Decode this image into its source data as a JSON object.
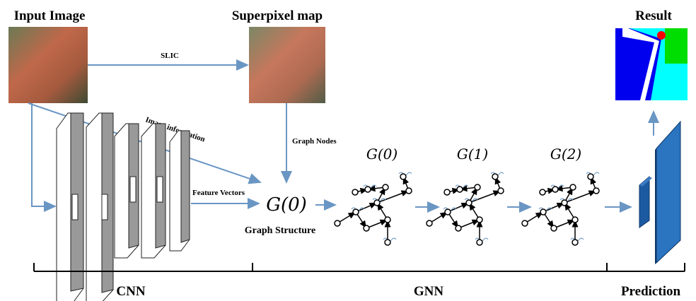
{
  "images": {
    "input": "Input Image",
    "superpixel": "Superpixel map",
    "result": "Result"
  },
  "edges": {
    "slic": "SLIC",
    "image_information": "Image information",
    "graph_nodes": "Graph Nodes",
    "feature_vectors": "Feature Vectors"
  },
  "graph_structure": {
    "symbol": "G(0)",
    "label": "Graph Structure"
  },
  "gnn_steps": [
    "G(0)",
    "G(1)",
    "G(2)"
  ],
  "stages": [
    "CNN",
    "GNN",
    "Prediction"
  ]
}
